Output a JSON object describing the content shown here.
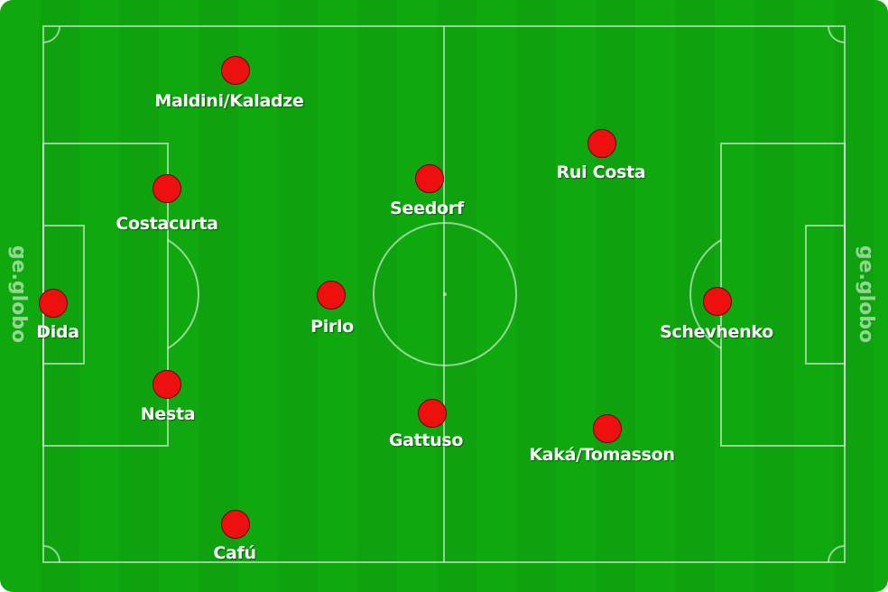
{
  "watermark": {
    "brand_text": "ge.globo"
  },
  "colors": {
    "pitch": "#0fa80f",
    "line": "#ffffff",
    "player": "#ee0f0f"
  },
  "players": [
    {
      "name": "Maldini/Kaladze"
    },
    {
      "name": "Costacurta"
    },
    {
      "name": "Dida"
    },
    {
      "name": "Nesta"
    },
    {
      "name": "Cafú"
    },
    {
      "name": "Pirlo"
    },
    {
      "name": "Seedorf"
    },
    {
      "name": "Gattuso"
    },
    {
      "name": "Rui Costa"
    },
    {
      "name": "Kaká/Tomasson"
    },
    {
      "name": "Schevhenko"
    }
  ]
}
